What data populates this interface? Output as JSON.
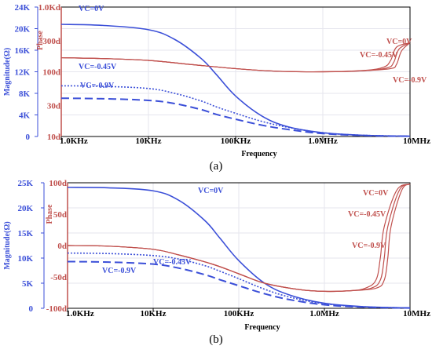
{
  "colors": {
    "magnitude": "#3b4fd8",
    "phase": "#c0504d",
    "grid": "#e6e6ee",
    "axis": "#000000"
  },
  "chart_data": [
    {
      "panel_label": "(a)",
      "type": "line",
      "x_scale": "log",
      "xlabel": "Frequency",
      "x_ticks": [
        "1.0KHz",
        "10KHz",
        "100KHz",
        "1.0MHz",
        "10MHz"
      ],
      "x_tick_values": [
        1000,
        10000,
        100000,
        1000000,
        10000000
      ],
      "xlim": [
        1000,
        10000000
      ],
      "y_left": {
        "label": "Magnitude(Ω)",
        "ticks": [
          "0",
          "4K",
          "8K",
          "12K",
          "16K",
          "20K",
          "24K"
        ],
        "tick_values": [
          0,
          4000,
          8000,
          12000,
          16000,
          20000,
          24000
        ],
        "lim": [
          0,
          24000
        ],
        "scale": "linear"
      },
      "y_right": {
        "label": "Phase",
        "ticks": [
          "10d",
          "30d",
          "100d",
          "300d",
          "1.0Kd"
        ],
        "tick_values": [
          10,
          30,
          100,
          300,
          1000
        ],
        "lim": [
          10,
          1000
        ],
        "scale": "log"
      },
      "grid": true,
      "series": [
        {
          "name": "VC=0V",
          "axis": "left",
          "style": "solid",
          "x": [
            1000,
            3000,
            10000,
            20000,
            40000,
            60000,
            100000,
            200000,
            400000,
            1000000,
            3000000,
            10000000
          ],
          "y": [
            20800,
            20600,
            19800,
            18000,
            14500,
            11500,
            7500,
            3800,
            1800,
            700,
            220,
            60
          ]
        },
        {
          "name": "VC=-0.45V",
          "axis": "left",
          "style": "dotted",
          "x": [
            1000,
            3000,
            10000,
            20000,
            40000,
            60000,
            100000,
            200000,
            400000,
            1000000,
            3000000,
            10000000
          ],
          "y": [
            9400,
            9300,
            8900,
            8000,
            6600,
            5500,
            4300,
            2800,
            1700,
            700,
            220,
            60
          ]
        },
        {
          "name": "VC=-0.9V",
          "axis": "left",
          "style": "dashed",
          "x": [
            1000,
            3000,
            10000,
            20000,
            40000,
            60000,
            100000,
            200000,
            400000,
            1000000,
            3000000,
            10000000
          ],
          "y": [
            7100,
            7000,
            6700,
            6100,
            5000,
            4100,
            3200,
            2100,
            1300,
            550,
            180,
            50
          ]
        },
        {
          "name": "VC=0V",
          "axis": "right",
          "style": "solid",
          "x": [
            1000,
            3000,
            10000,
            30000,
            100000,
            300000,
            1000000,
            3000000,
            5000000,
            6000000,
            7000000,
            10000000
          ],
          "y": [
            165,
            160,
            150,
            130,
            112,
            102,
            100,
            105,
            118,
            150,
            240,
            280
          ]
        },
        {
          "name": "VC=-0.45V",
          "axis": "right",
          "style": "solid",
          "x": [
            1000,
            3000,
            10000,
            30000,
            100000,
            300000,
            1000000,
            3000000,
            5500000,
            6500000,
            7500000,
            10000000
          ],
          "y": [
            165,
            160,
            150,
            130,
            112,
            102,
            100,
            104,
            115,
            140,
            225,
            280
          ]
        },
        {
          "name": "VC=-0.9V",
          "axis": "right",
          "style": "solid",
          "x": [
            1000,
            3000,
            10000,
            30000,
            100000,
            300000,
            1000000,
            3000000,
            6000000,
            7000000,
            8000000,
            10000000
          ],
          "y": [
            165,
            160,
            150,
            130,
            112,
            102,
            100,
            104,
            112,
            130,
            210,
            280
          ]
        }
      ],
      "annotations": [
        {
          "text": "VC=0V",
          "color": "magnitude"
        },
        {
          "text": "VC=-0.45V",
          "color": "magnitude"
        },
        {
          "text": "VC=-0.9V",
          "color": "magnitude"
        },
        {
          "text": "VC=0V",
          "color": "phase"
        },
        {
          "text": "VC=-0.45V",
          "color": "phase"
        },
        {
          "text": "VC=-0.9V",
          "color": "phase"
        }
      ]
    },
    {
      "panel_label": "(b)",
      "type": "line",
      "x_scale": "log",
      "xlabel": "Frequency",
      "x_ticks": [
        "1.0KHz",
        "10KHz",
        "100KHz",
        "1.0MHz",
        "10MHz"
      ],
      "x_tick_values": [
        1000,
        10000,
        100000,
        1000000,
        10000000
      ],
      "xlim": [
        1000,
        10000000
      ],
      "y_left": {
        "label": "Magnitude(Ω)",
        "ticks": [
          "0",
          "5K",
          "10K",
          "15K",
          "20K",
          "25K"
        ],
        "tick_values": [
          0,
          5000,
          10000,
          15000,
          20000,
          25000
        ],
        "lim": [
          0,
          25000
        ],
        "scale": "linear"
      },
      "y_right": {
        "label": "Phase",
        "ticks": [
          "-100d",
          "-50d",
          "0d",
          "50d",
          "100d"
        ],
        "tick_values": [
          -100,
          -50,
          0,
          50,
          100
        ],
        "lim": [
          -100,
          100
        ],
        "scale": "linear"
      },
      "grid": true,
      "series": [
        {
          "name": "VC=0V",
          "axis": "left",
          "style": "solid",
          "x": [
            1000,
            3000,
            10000,
            20000,
            40000,
            60000,
            100000,
            200000,
            400000,
            1000000,
            3000000,
            10000000
          ],
          "y": [
            24100,
            24000,
            23400,
            21500,
            17500,
            14000,
            9500,
            5000,
            2600,
            1000,
            300,
            80
          ]
        },
        {
          "name": "VC=-0.45V",
          "axis": "left",
          "style": "dotted",
          "x": [
            1000,
            3000,
            10000,
            20000,
            40000,
            60000,
            100000,
            200000,
            400000,
            1000000,
            3000000,
            10000000
          ],
          "y": [
            11000,
            10900,
            10500,
            9800,
            8500,
            7400,
            5900,
            3800,
            2200,
            900,
            280,
            80
          ]
        },
        {
          "name": "VC=-0.9V",
          "axis": "left",
          "style": "dashed",
          "x": [
            1000,
            3000,
            10000,
            20000,
            40000,
            60000,
            100000,
            200000,
            400000,
            1000000,
            3000000,
            10000000
          ],
          "y": [
            9300,
            9200,
            8800,
            8000,
            6700,
            5700,
            4500,
            2900,
            1700,
            700,
            220,
            60
          ]
        },
        {
          "name": "VC=0V",
          "axis": "right",
          "style": "solid",
          "x": [
            1000,
            3000,
            10000,
            20000,
            50000,
            100000,
            200000,
            500000,
            1000000,
            2000000,
            3000000,
            4000000,
            4500000,
            5000000,
            7000000,
            10000000
          ],
          "y": [
            0,
            -1,
            -6,
            -15,
            -30,
            -45,
            -60,
            -70,
            -73,
            -72,
            -68,
            -55,
            -20,
            30,
            88,
            98
          ]
        },
        {
          "name": "VC=-0.45V",
          "axis": "right",
          "style": "solid",
          "x": [
            1000,
            3000,
            10000,
            20000,
            50000,
            100000,
            200000,
            500000,
            1000000,
            2000000,
            3500000,
            4500000,
            5000000,
            5500000,
            7500000,
            10000000
          ],
          "y": [
            0,
            -1,
            -6,
            -15,
            -30,
            -45,
            -60,
            -70,
            -73,
            -72,
            -68,
            -55,
            -20,
            30,
            88,
            98
          ]
        },
        {
          "name": "VC=-0.9V",
          "axis": "right",
          "style": "solid",
          "x": [
            1000,
            3000,
            10000,
            20000,
            50000,
            100000,
            200000,
            500000,
            1000000,
            2000000,
            4000000,
            5000000,
            5500000,
            6000000,
            8000000,
            10000000
          ],
          "y": [
            0,
            -1,
            -6,
            -15,
            -30,
            -45,
            -60,
            -70,
            -73,
            -72,
            -68,
            -55,
            -20,
            30,
            88,
            98
          ]
        }
      ],
      "annotations": [
        {
          "text": "VC=0V",
          "color": "magnitude"
        },
        {
          "text": "VC=-0.45V",
          "color": "magnitude"
        },
        {
          "text": "VC=-0.9V",
          "color": "magnitude"
        },
        {
          "text": "VC=0V",
          "color": "phase"
        },
        {
          "text": "VC=-0.45V",
          "color": "phase"
        },
        {
          "text": "VC=-0.9V",
          "color": "phase"
        }
      ]
    }
  ]
}
